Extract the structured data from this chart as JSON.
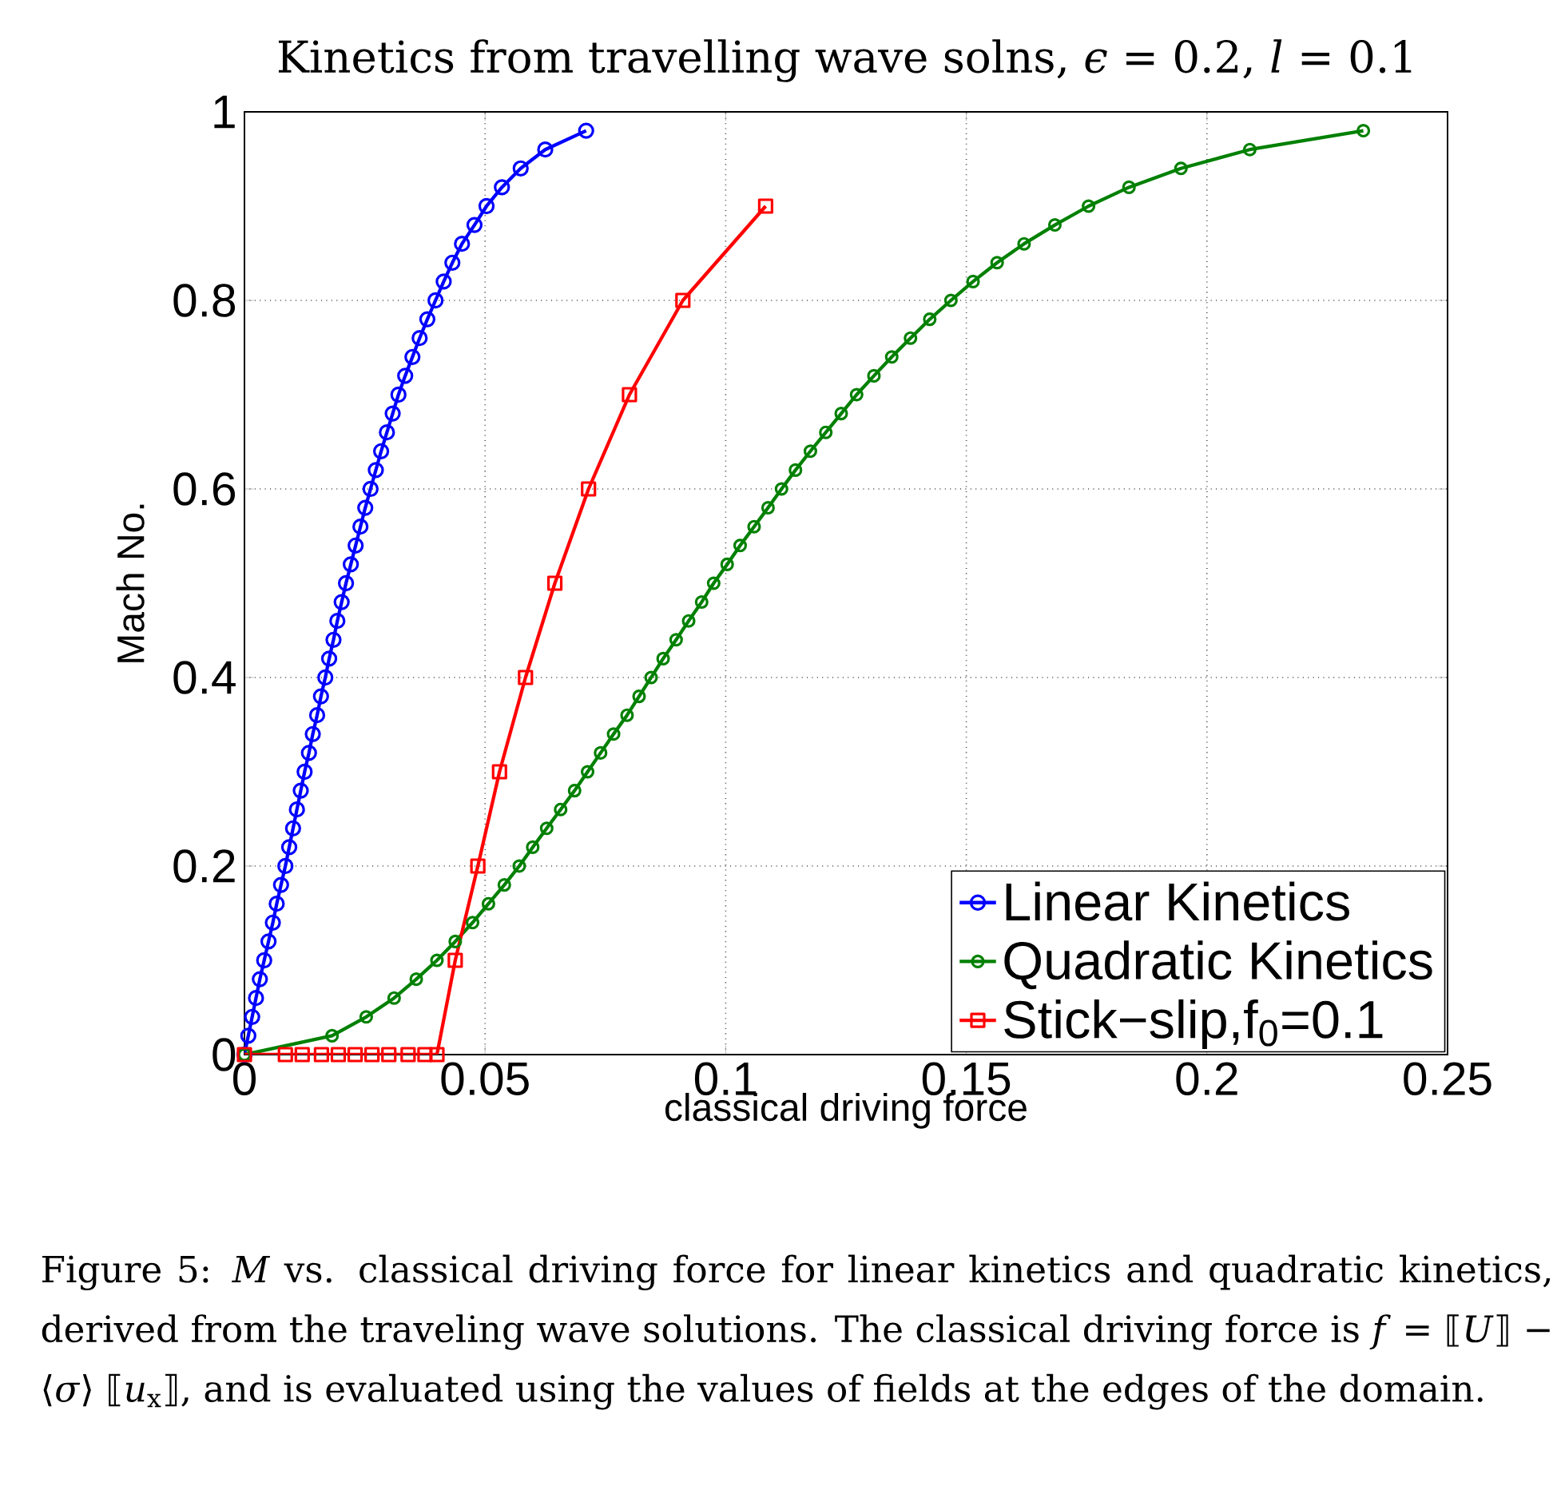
{
  "chart_data": {
    "type": "line",
    "title": "Kinetics from travelling wave solns, *ϵ* = 0.2, *l* = 0.1",
    "xlabel": "classical driving force",
    "ylabel": "Mach No.",
    "xlim": [
      0,
      0.25
    ],
    "ylim": [
      0,
      1
    ],
    "xticks": [
      0,
      0.05,
      0.1,
      0.15,
      0.2,
      0.25
    ],
    "yticks": [
      0,
      0.2,
      0.4,
      0.6,
      0.8,
      1
    ],
    "grid": true,
    "legend": "bottom right",
    "line_style": "solid",
    "series": [
      {
        "name": "Linear Kinetics",
        "color": "#0000ff",
        "marker": "circle",
        "x": [
          0,
          0.0008,
          0.0016,
          0.0024,
          0.0032,
          0.0041,
          0.005,
          0.0059,
          0.0067,
          0.0076,
          0.0085,
          0.0093,
          0.0101,
          0.0109,
          0.0117,
          0.0125,
          0.0134,
          0.0142,
          0.0151,
          0.0159,
          0.0168,
          0.0176,
          0.0185,
          0.0193,
          0.0202,
          0.0211,
          0.0221,
          0.0231,
          0.0241,
          0.0251,
          0.0262,
          0.0273,
          0.0284,
          0.0296,
          0.0308,
          0.032,
          0.0334,
          0.0349,
          0.0364,
          0.038,
          0.0397,
          0.0414,
          0.0432,
          0.0452,
          0.0478,
          0.0503,
          0.0535,
          0.0574,
          0.0625,
          0.071
        ],
        "values": [
          0,
          0.02,
          0.04,
          0.06,
          0.08,
          0.1,
          0.12,
          0.14,
          0.16,
          0.18,
          0.2,
          0.22,
          0.24,
          0.26,
          0.28,
          0.3,
          0.32,
          0.34,
          0.36,
          0.38,
          0.4,
          0.42,
          0.44,
          0.46,
          0.48,
          0.5,
          0.52,
          0.54,
          0.56,
          0.58,
          0.6,
          0.62,
          0.64,
          0.66,
          0.68,
          0.7,
          0.72,
          0.74,
          0.76,
          0.78,
          0.8,
          0.82,
          0.84,
          0.86,
          0.88,
          0.9,
          0.92,
          0.94,
          0.96,
          0.98
        ]
      },
      {
        "name": "Quadratic Kinetics",
        "color": "#008000",
        "marker": "circle",
        "x": [
          0,
          0.0182,
          0.0253,
          0.0311,
          0.0357,
          0.04,
          0.0438,
          0.0474,
          0.0507,
          0.054,
          0.0571,
          0.0599,
          0.0628,
          0.0657,
          0.0686,
          0.0713,
          0.074,
          0.0767,
          0.0795,
          0.082,
          0.0845,
          0.087,
          0.0897,
          0.0923,
          0.095,
          0.0975,
          0.1003,
          0.103,
          0.1059,
          0.1088,
          0.1116,
          0.1145,
          0.1176,
          0.1208,
          0.124,
          0.1272,
          0.1308,
          0.1345,
          0.1384,
          0.1424,
          0.1468,
          0.1514,
          0.1564,
          0.162,
          0.1684,
          0.1754,
          0.1838,
          0.1946,
          0.2089,
          0.2325
        ],
        "values": [
          0,
          0.02,
          0.04,
          0.06,
          0.08,
          0.1,
          0.12,
          0.14,
          0.16,
          0.18,
          0.2,
          0.22,
          0.24,
          0.26,
          0.28,
          0.3,
          0.32,
          0.34,
          0.36,
          0.38,
          0.4,
          0.42,
          0.44,
          0.46,
          0.48,
          0.5,
          0.52,
          0.54,
          0.56,
          0.58,
          0.6,
          0.62,
          0.64,
          0.66,
          0.68,
          0.7,
          0.72,
          0.74,
          0.76,
          0.78,
          0.8,
          0.82,
          0.84,
          0.86,
          0.88,
          0.9,
          0.92,
          0.94,
          0.96,
          0.98
        ]
      },
      {
        "name": "Stick−slip,f$_{0}$=0.1",
        "color": "#ff0000",
        "marker": "square",
        "x": [
          0,
          0.0085,
          0.012,
          0.016,
          0.0195,
          0.023,
          0.0265,
          0.03,
          0.034,
          0.0375,
          0.04,
          0.0438,
          0.0485,
          0.053,
          0.0584,
          0.0645,
          0.0715,
          0.08,
          0.0911,
          0.1083
        ],
        "values": [
          0,
          0,
          0,
          0,
          0,
          0,
          0,
          0,
          0,
          0,
          0,
          0.1,
          0.2,
          0.3,
          0.4,
          0.5,
          0.6,
          0.7,
          0.8,
          0.9
        ]
      }
    ],
    "annotations": [
      "Figure 5: *M* vs. classical driving force for linear kinetics and quadratic kinetics, derived from the traveling wave solutions. The classical driving force is *f* = ⟦*U*⟧ − ⟨*σ*⟩ ⟦*u*$_{x}$⟧, and is evaluated using the values of fields at the edges of the domain."
    ]
  }
}
